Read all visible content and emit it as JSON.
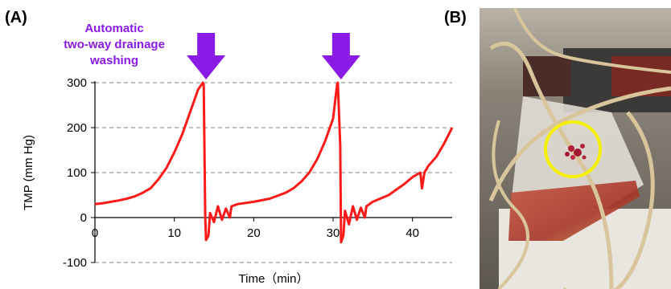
{
  "panels": {
    "a_label": "(A)",
    "b_label": "(B)"
  },
  "annotation": {
    "lines": [
      "Automatic",
      "two-way drainage",
      "washing"
    ],
    "color": "#8a1be6"
  },
  "photo": {
    "description_icon": "photo-of-filter-bag-with-highlighted-clot",
    "highlight_color": "#f5f000",
    "liquid_color": "#b23a2a"
  },
  "chart_data": {
    "type": "line",
    "xlabel": "Time（min）",
    "ylabel": "TMP (mm Hg)",
    "xlim": [
      0,
      45
    ],
    "ylim": [
      -100,
      300
    ],
    "xticks": [
      0,
      10,
      20,
      30,
      40
    ],
    "yticks": [
      300,
      200,
      100,
      0,
      -100
    ],
    "grid": "horizontal dashed",
    "arrows_at_x": [
      14,
      31
    ],
    "series": [
      {
        "color": "#ff1a1a",
        "x": [
          0,
          1,
          2,
          3,
          4,
          5,
          6,
          7,
          8,
          9,
          10,
          11,
          12,
          13,
          13.6,
          13.7,
          13.9,
          14.0,
          14.3,
          14.5,
          15,
          15.5,
          16,
          16.5,
          17,
          17.2,
          18,
          20,
          22,
          24,
          25,
          26,
          27,
          28,
          29,
          30,
          30.5,
          30.6,
          30.9,
          31.0,
          31.3,
          31.5,
          32,
          32.5,
          33,
          33.5,
          34,
          34.2,
          35,
          37,
          39,
          40,
          41,
          41.2,
          41.5,
          42,
          43,
          44,
          45
        ],
        "y": [
          30,
          32,
          35,
          38,
          42,
          47,
          55,
          65,
          85,
          110,
          145,
          185,
          235,
          285,
          300,
          295,
          0,
          -50,
          -40,
          10,
          -10,
          25,
          -5,
          20,
          0,
          25,
          30,
          35,
          42,
          55,
          65,
          80,
          100,
          130,
          170,
          220,
          295,
          300,
          160,
          -55,
          -40,
          15,
          -15,
          25,
          -5,
          22,
          0,
          25,
          35,
          50,
          75,
          90,
          100,
          65,
          100,
          115,
          135,
          165,
          200
        ]
      }
    ]
  }
}
